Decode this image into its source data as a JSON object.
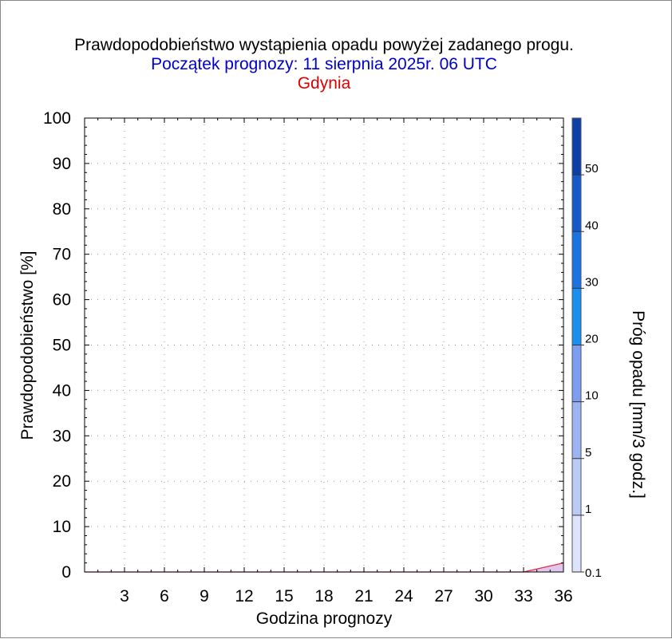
{
  "chart_data": {
    "type": "area",
    "title": "Prawdopodobieństwo wystąpienia opadu powyżej zadanego progu.",
    "subtitle": "Początek prognozy: 11 sierpnia 2025r. 06 UTC",
    "location": "Gdynia",
    "xlabel": "Godzina prognozy",
    "ylabel": "Prawdopodobieństwo [%]",
    "xlim": [
      0,
      36
    ],
    "ylim": [
      0,
      100
    ],
    "x_ticks": [
      "3",
      "6",
      "9",
      "12",
      "15",
      "18",
      "21",
      "24",
      "27",
      "30",
      "33",
      "36"
    ],
    "y_ticks": [
      "0",
      "10",
      "20",
      "30",
      "40",
      "50",
      "60",
      "70",
      "80",
      "90",
      "100"
    ],
    "grid": true,
    "series": [
      {
        "threshold": 0.1,
        "x": [
          0,
          3,
          6,
          9,
          12,
          15,
          18,
          21,
          24,
          27,
          30,
          33,
          36
        ],
        "values": [
          0,
          0,
          0,
          0,
          0,
          0,
          0,
          0,
          0,
          0,
          0,
          0,
          2
        ]
      }
    ],
    "colorbar": {
      "label": "Próg opadu [mm/3 godz.]",
      "labels": [
        "0.1",
        "1",
        "5",
        "10",
        "20",
        "30",
        "40",
        "50"
      ],
      "colors": [
        "#dde3fb",
        "#bccaf6",
        "#9db3f2",
        "#7d9df0",
        "#1a8ff0",
        "#1b72e1",
        "#165ac9",
        "#0d3fa8"
      ]
    },
    "colors": {
      "title": "#000000",
      "subtitle": "#0000cc",
      "location": "#e00000",
      "series_line": "#e03040",
      "series_fill": "#d9b8e8"
    }
  }
}
